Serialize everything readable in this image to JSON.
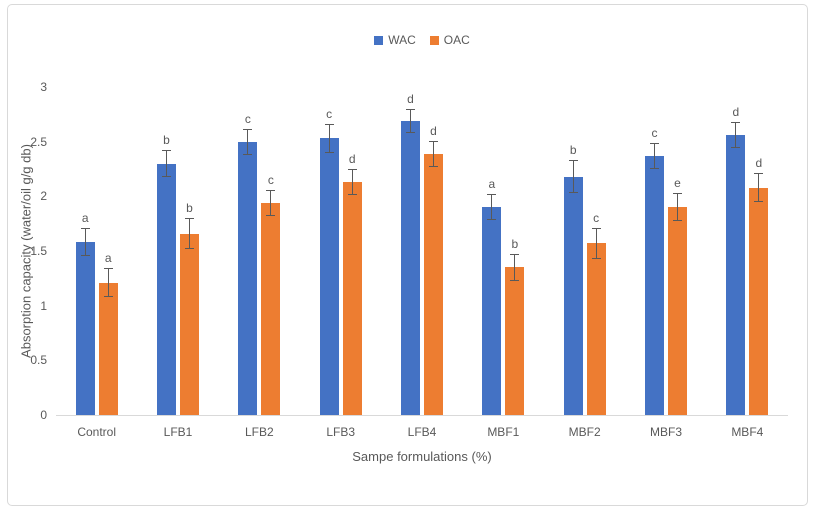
{
  "figure": {
    "background_color": "#ffffff",
    "frame_border_color": "#d9d9d9"
  },
  "legend": {
    "position": "top-center",
    "items": [
      {
        "label": "WAC",
        "color": "#4472C4"
      },
      {
        "label": "OAC",
        "color": "#ED7D31"
      }
    ]
  },
  "chart_data": {
    "type": "bar",
    "title": "",
    "xlabel": "Sampe formulations (%)",
    "ylabel": "Absorption capacity (water/oil g/g db)",
    "categories": [
      "Control",
      "LFB1",
      "LFB2",
      "LFB3",
      "LFB4",
      "MBF1",
      "MBF2",
      "MBF3",
      "MBF4"
    ],
    "series": [
      {
        "name": "WAC",
        "color": "#4472C4",
        "values": [
          1.58,
          2.3,
          2.5,
          2.53,
          2.69,
          1.9,
          2.18,
          2.37,
          2.56
        ],
        "errors": [
          0.13,
          0.12,
          0.12,
          0.13,
          0.11,
          0.12,
          0.15,
          0.12,
          0.12
        ],
        "letters": [
          "a",
          "b",
          "c",
          "c",
          "d",
          "a",
          "b",
          "c",
          "d"
        ]
      },
      {
        "name": "OAC",
        "color": "#ED7D31",
        "values": [
          1.21,
          1.66,
          1.94,
          2.13,
          2.39,
          1.35,
          1.57,
          1.9,
          2.08
        ],
        "errors": [
          0.13,
          0.14,
          0.12,
          0.12,
          0.12,
          0.12,
          0.14,
          0.13,
          0.13
        ],
        "letters": [
          "a",
          "b",
          "c",
          "d",
          "d",
          "b",
          "c",
          "e",
          "d"
        ]
      }
    ],
    "ylim": [
      0,
      3
    ],
    "yticks": [
      0,
      0.5,
      1,
      1.5,
      2,
      2.5,
      3
    ],
    "grid": false,
    "legend_position": "top-center",
    "error_bars": true,
    "error_bar_color": "#595959",
    "axis_line_color": "#d9d9d9",
    "text_color": "#595959"
  }
}
